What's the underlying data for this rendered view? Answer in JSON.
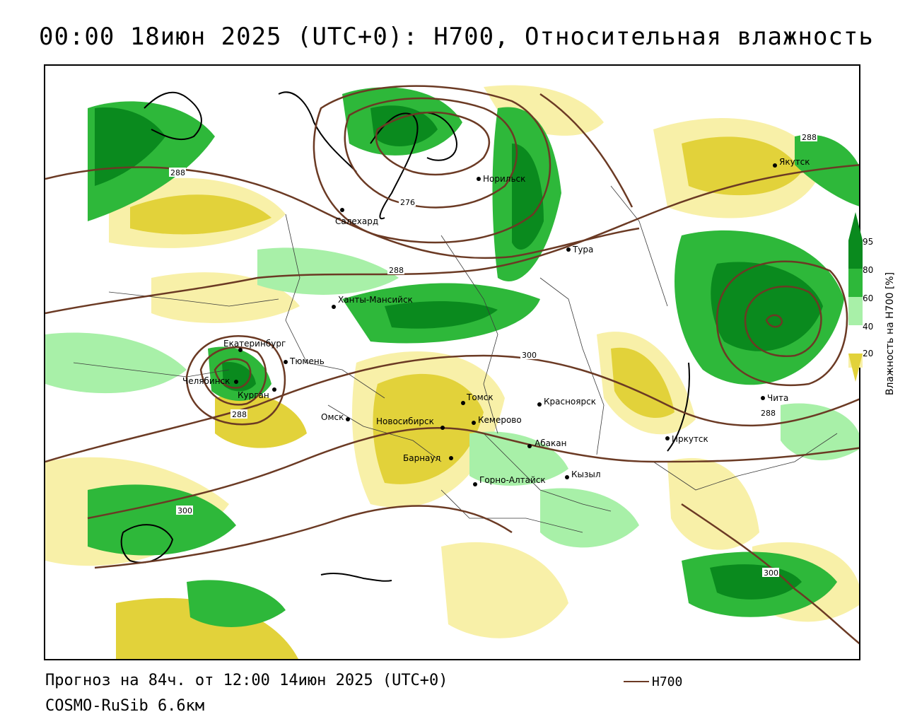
{
  "header": {
    "title": "00:00 18июн 2025 (UTC+0): H700, Относительная влажность"
  },
  "footer": {
    "forecast": "Прогноз на 84ч. от 12:00 14июн 2025 (UTC+0)",
    "model": "COSMO-RuSib 6.6км",
    "legend_line_label": "H700"
  },
  "colorbar": {
    "label": "Влажность на H700 [%]",
    "ticks": [
      "95",
      "80",
      "60",
      "40",
      "20"
    ],
    "colors": {
      "c95": "#0a8a1e",
      "c80": "#2eb83a",
      "c60": "#a8f0a8",
      "c40": "#ffffff",
      "c20": "#f8f0a8",
      "c0": "#e2d23a"
    }
  },
  "isolines": {
    "color": "#6b3a24",
    "labels": [
      "288",
      "288",
      "288",
      "300",
      "300",
      "276",
      "288",
      "288",
      "300"
    ]
  },
  "cities": [
    {
      "name": "Норильск"
    },
    {
      "name": "Салехард"
    },
    {
      "name": "Тура"
    },
    {
      "name": "Якутск"
    },
    {
      "name": "Ханты-Мансийск"
    },
    {
      "name": "Екатеринбург"
    },
    {
      "name": "Тюмень"
    },
    {
      "name": "Челябинск"
    },
    {
      "name": "Курган"
    },
    {
      "name": "Омск"
    },
    {
      "name": "Новосибирск"
    },
    {
      "name": "Томск"
    },
    {
      "name": "Кемерово"
    },
    {
      "name": "Красноярск"
    },
    {
      "name": "Барнаул"
    },
    {
      "name": "Абакан"
    },
    {
      "name": "Горно-Алтайск"
    },
    {
      "name": "Кызыл"
    },
    {
      "name": "Иркутск"
    },
    {
      "name": "Чита"
    }
  ]
}
